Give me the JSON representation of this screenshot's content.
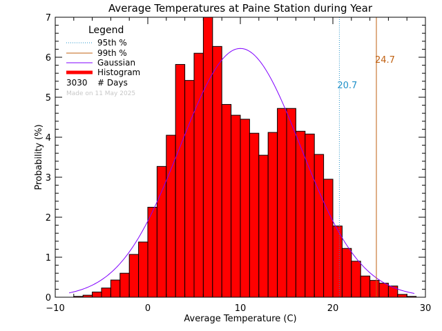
{
  "chart_data": {
    "type": "bar",
    "title": "Average Temperatures at Paine Station during Year",
    "xlabel": "Average Temperature (C)",
    "ylabel": "Probability (%)",
    "xlim": [
      -10,
      30
    ],
    "ylim": [
      0,
      7
    ],
    "x_ticks": [
      "−10",
      "0",
      "10",
      "20",
      "30"
    ],
    "x_tick_values": [
      -10,
      0,
      10,
      20,
      30
    ],
    "y_ticks": [
      "0",
      "1",
      "2",
      "3",
      "4",
      "5",
      "6",
      "7"
    ],
    "y_tick_values": [
      0,
      1,
      2,
      3,
      4,
      5,
      6,
      7
    ],
    "bin_width": 1,
    "histogram": {
      "bin_starts": [
        -8,
        -7,
        -6,
        -5,
        -4,
        -3,
        -2,
        -1,
        0,
        1,
        2,
        3,
        4,
        5,
        6,
        7,
        8,
        9,
        10,
        11,
        12,
        13,
        14,
        15,
        16,
        17,
        18,
        19,
        20,
        21,
        22,
        23,
        24,
        25,
        26,
        27,
        28
      ],
      "values": [
        0.02,
        0.05,
        0.13,
        0.23,
        0.43,
        0.6,
        1.07,
        1.38,
        2.25,
        3.27,
        4.05,
        5.82,
        5.42,
        6.1,
        7.0,
        6.27,
        4.82,
        4.55,
        4.45,
        4.1,
        3.55,
        4.12,
        4.72,
        4.72,
        4.15,
        4.08,
        3.57,
        2.95,
        1.78,
        1.22,
        0.9,
        0.53,
        0.42,
        0.35,
        0.28,
        0.07,
        0.02
      ],
      "color": "#ff0000"
    },
    "gaussian": {
      "mean": 10,
      "peak": 6.22,
      "sigma": 6.5,
      "x_range": [
        -8.5,
        28.8
      ],
      "color": "#8000ff"
    },
    "p95": {
      "value": 20.7,
      "label": "20.7",
      "color": "#1e90c8"
    },
    "p99": {
      "value": 24.7,
      "label": "24.7",
      "color": "#c06010"
    },
    "legend": {
      "title": "Legend",
      "items": [
        {
          "label": "95th %",
          "style": "dotted",
          "color": "#1e90c8"
        },
        {
          "label": "99th %",
          "style": "solid",
          "color": "#c06010"
        },
        {
          "label": "Gaussian",
          "style": "solid",
          "color": "#8000ff"
        },
        {
          "label": "Histogram",
          "style": "thick",
          "color": "#ff0000"
        }
      ],
      "days_count": "3030",
      "days_label": "# Days",
      "made_on": "Made on 11 May 2025"
    }
  }
}
